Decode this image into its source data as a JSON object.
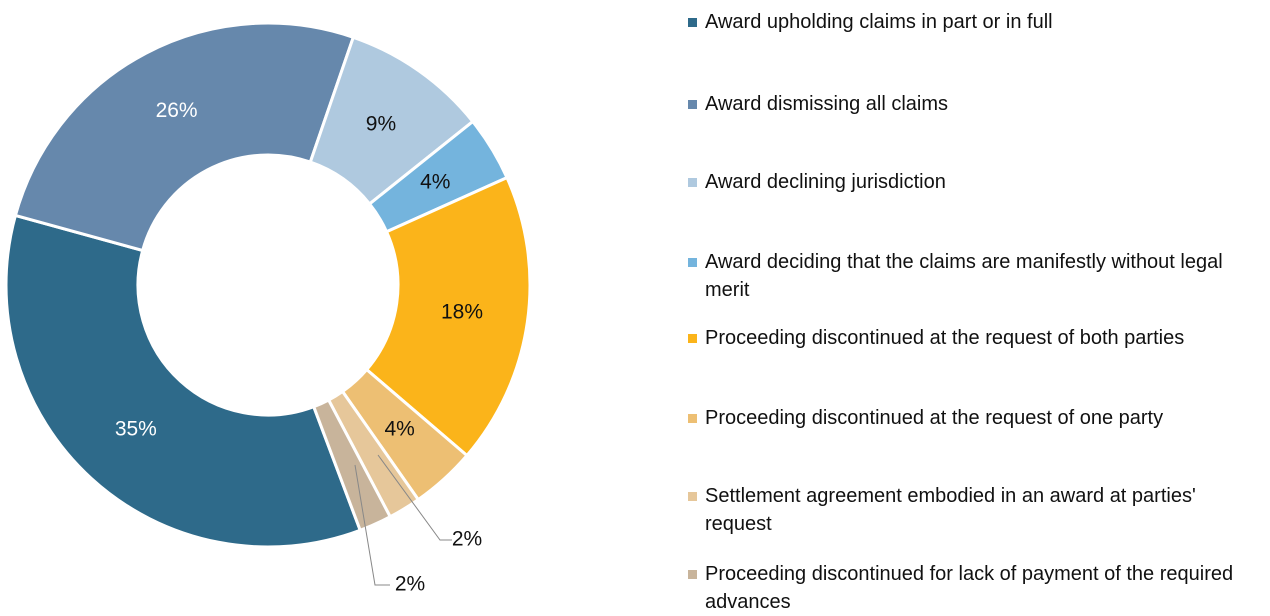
{
  "chart_data": {
    "type": "donut",
    "categories": [
      "Award upholding claims in part or in full",
      "Award dismissing all claims",
      "Award declining jurisdiction",
      "Award deciding that the claims are manifestly without legal merit",
      "Proceeding discontinued at the request of both parties",
      "Proceeding discontinued at the request of one party",
      "Settlement agreement embodied in an award at parties' request",
      "Proceeding discontinued for lack of payment of the required advances"
    ],
    "values": [
      35,
      26,
      9,
      4,
      18,
      4,
      2,
      2
    ],
    "value_labels": [
      "35%",
      "26%",
      "9%",
      "4%",
      "18%",
      "4%",
      "2%",
      "2%"
    ],
    "colors": [
      "#2e6a8a",
      "#6688ac",
      "#afc9df",
      "#74b4dd",
      "#fbb41a",
      "#edbf73",
      "#e6c79a",
      "#c8b49b"
    ],
    "legend": "right"
  }
}
